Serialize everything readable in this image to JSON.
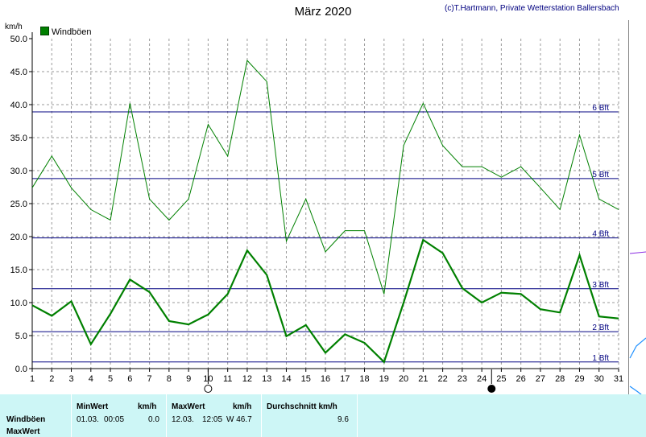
{
  "title": "März 2020",
  "copyright": "(c)T.Hartmann, Private Wetterstation Ballersbach",
  "chart_data": {
    "type": "line",
    "ylabel": "km/h",
    "ylim": [
      0,
      50
    ],
    "yticks": [
      "0.0",
      "5.0",
      "10.0",
      "15.0",
      "20.0",
      "25.0",
      "30.0",
      "35.0",
      "40.0",
      "45.0",
      "50.0"
    ],
    "x": [
      1,
      2,
      3,
      4,
      5,
      6,
      7,
      8,
      9,
      10,
      11,
      12,
      13,
      14,
      15,
      16,
      17,
      18,
      19,
      20,
      21,
      22,
      23,
      24,
      25,
      26,
      27,
      28,
      29,
      30,
      31
    ],
    "grid": true,
    "legend": "top-left",
    "series": [
      {
        "name": "Windböen",
        "color": "#008000",
        "values": [
          27.4,
          32.2,
          27.4,
          24.1,
          22.5,
          40.2,
          25.7,
          22.5,
          25.7,
          37.0,
          32.2,
          46.7,
          43.5,
          19.3,
          25.7,
          17.7,
          20.9,
          20.9,
          11.3,
          33.8,
          40.2,
          33.8,
          30.6,
          30.6,
          29.0,
          30.6,
          27.4,
          24.1,
          35.4,
          25.7,
          24.1
        ]
      },
      {
        "name": "",
        "color": "#008000",
        "values": [
          9.6,
          8.0,
          10.2,
          3.7,
          8.3,
          13.5,
          11.6,
          7.2,
          6.7,
          8.2,
          11.3,
          17.9,
          14.2,
          4.9,
          6.6,
          2.4,
          5.2,
          3.9,
          1.0,
          10.0,
          19.5,
          17.5,
          12.2,
          10.0,
          11.5,
          11.3,
          9.0,
          8.5,
          17.2,
          7.9,
          7.6
        ]
      }
    ],
    "beaufort_lines": [
      {
        "label": "1 Bft",
        "value": 1.0
      },
      {
        "label": "2 Bft",
        "value": 5.6
      },
      {
        "label": "3 Bft",
        "value": 12.1
      },
      {
        "label": "4 Bft",
        "value": 19.8
      },
      {
        "label": "5 Bft",
        "value": 28.8
      },
      {
        "label": "6 Bft",
        "value": 38.9
      }
    ],
    "moon_phases": [
      {
        "day": 10,
        "phase": "full-moon"
      },
      {
        "day": 24.5,
        "phase": "new-moon"
      }
    ]
  },
  "panel": {
    "row1_label": "Windböen",
    "row2_label": "MaxWert",
    "min_header": "MinWert",
    "min_unit": "km/h",
    "min_date": "01.03.",
    "min_time": "00:05",
    "min_value": "0.0",
    "max_header": "MaxWert",
    "max_unit": "km/h",
    "max_date": "12.03.",
    "max_time": "12:05",
    "max_value": "W 46.7",
    "avg_header": "Durchschnitt km/h",
    "avg_value": "9.6"
  }
}
